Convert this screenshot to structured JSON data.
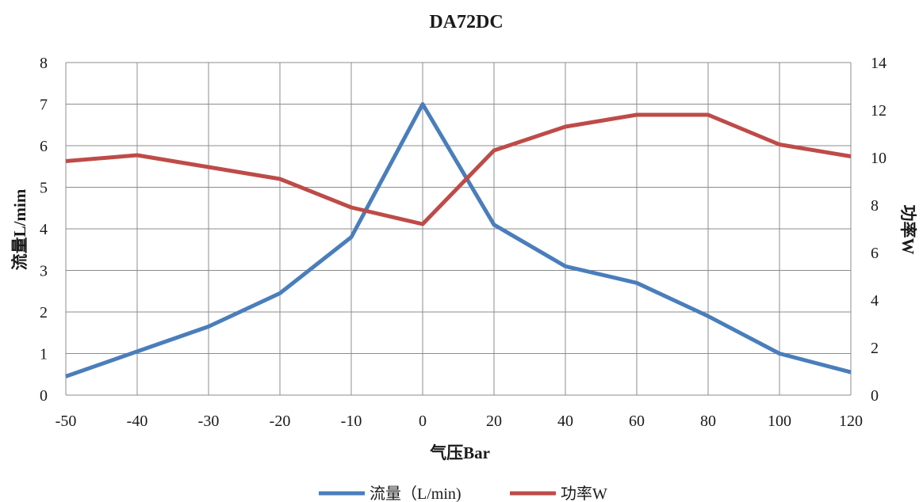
{
  "chart_data": {
    "type": "line",
    "title": "DA72DC",
    "xlabel": "气压Bar",
    "ylabel": "流量L/mim",
    "y2label": "功率W",
    "categories": [
      "-50",
      "-40",
      "-30",
      "-20",
      "-10",
      "0",
      "20",
      "40",
      "60",
      "80",
      "100",
      "120"
    ],
    "ylim": [
      0,
      8
    ],
    "y2lim": [
      0,
      14
    ],
    "yticks": [
      "0",
      "1",
      "2",
      "3",
      "4",
      "5",
      "6",
      "7",
      "8"
    ],
    "y2ticks": [
      "0",
      "2",
      "4",
      "6",
      "8",
      "10",
      "12",
      "14"
    ],
    "grid": true,
    "legend_position": "bottom",
    "series": [
      {
        "name": "流量（L/min)",
        "axis": "left",
        "color": "#4a7ebb",
        "values": [
          0.45,
          1.05,
          1.65,
          2.45,
          3.8,
          7.0,
          4.1,
          3.1,
          2.7,
          1.9,
          1.0,
          0.55
        ]
      },
      {
        "name": "功率W",
        "axis": "right",
        "color": "#be4b48",
        "values": [
          9.85,
          10.1,
          9.6,
          9.1,
          7.9,
          7.2,
          10.3,
          11.3,
          11.8,
          11.8,
          10.55,
          10.05
        ]
      }
    ]
  }
}
